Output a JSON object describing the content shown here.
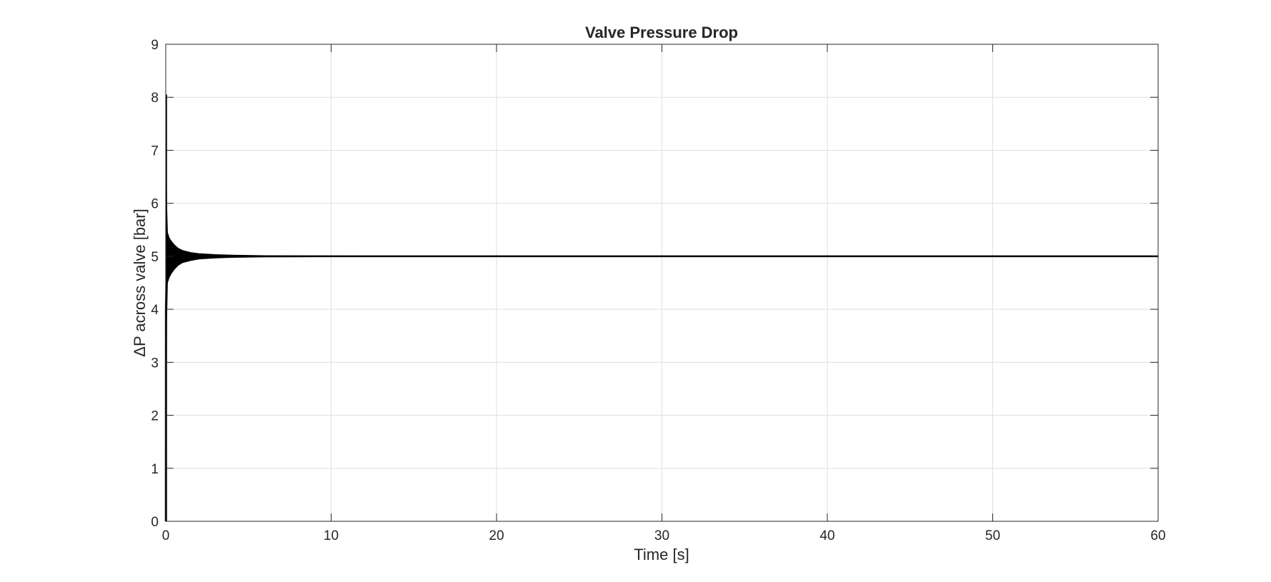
{
  "chart_data": {
    "type": "line",
    "title": "Valve Pressure Drop",
    "xlabel": "Time [s]",
    "ylabel": "ΔP across valve [bar]",
    "xlim": [
      0,
      60
    ],
    "ylim": [
      0,
      9
    ],
    "xticks": [
      0,
      10,
      20,
      30,
      40,
      50,
      60
    ],
    "yticks": [
      0,
      1,
      2,
      3,
      4,
      5,
      6,
      7,
      8,
      9
    ],
    "grid": true,
    "line_color": "#000000",
    "series": [
      {
        "values_description_free": true,
        "x": [
          0,
          0.005,
          0.02,
          0.05,
          0.1,
          0.2,
          0.3,
          0.5,
          0.75,
          1.0,
          1.5,
          2.0,
          3.0,
          4.0,
          5.0,
          6.0,
          8.0,
          10.0,
          15.0,
          20.0,
          30.0,
          40.0,
          50.0,
          60.0
        ],
        "upper": [
          0,
          8.05,
          7.0,
          6.0,
          5.45,
          5.35,
          5.3,
          5.22,
          5.15,
          5.11,
          5.07,
          5.05,
          5.03,
          5.02,
          5.015,
          5.01,
          5.008,
          5.005,
          5.004,
          5.003,
          5.003,
          5.003,
          5.003,
          5.003
        ],
        "lower": [
          0,
          0.0,
          1.5,
          3.8,
          4.5,
          4.6,
          4.66,
          4.75,
          4.83,
          4.88,
          4.92,
          4.95,
          4.97,
          4.98,
          4.985,
          4.99,
          4.992,
          4.995,
          4.996,
          4.997,
          4.997,
          4.997,
          4.997,
          4.997
        ]
      }
    ]
  }
}
